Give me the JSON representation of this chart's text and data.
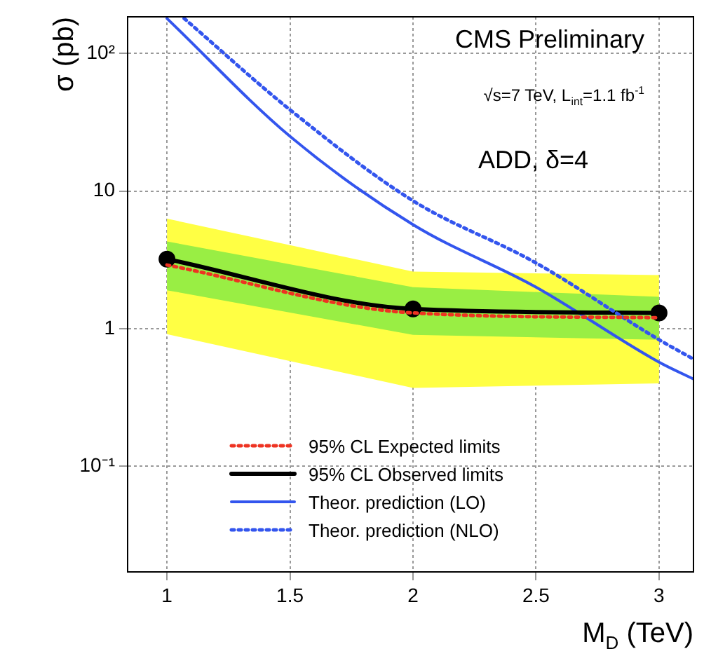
{
  "chart_data": {
    "type": "line",
    "xlabel": "M$_{D}$ (TeV)",
    "ylabel": "σ (pb)",
    "annotations": [
      "CMS Preliminary",
      "√s=7 TeV, L$_{int}$=1.1 fb$^{-1}$",
      "ADD, δ=4"
    ],
    "x": [
      1,
      2,
      3
    ],
    "series": [
      {
        "color": "#ffff44",
        "values": [
          null,
          null,
          null
        ],
        "lower": [
          0.91,
          0.37,
          0.4
        ],
        "upper": [
          6.3,
          2.6,
          2.45
        ]
      },
      {
        "color": "#99ee44",
        "values": [
          null,
          null,
          null
        ],
        "lower": [
          1.9,
          0.9,
          0.83
        ],
        "upper": [
          4.3,
          2.0,
          1.7
        ]
      },
      {
        "name": "95% CL Expected limits",
        "color": "#ee3322",
        "values": [
          2.9,
          1.3,
          1.2
        ],
        "line_style": "dotted",
        "marker": "none"
      },
      {
        "name": "95% CL Observed limits",
        "color": "#000000",
        "values": [
          3.2,
          1.39,
          1.3
        ],
        "line_style": "solid",
        "marker": "circle"
      },
      {
        "name": "Theor. prediction (LO)",
        "color": "#3355ee",
        "x": [
          1,
          1.5,
          2,
          2.5,
          3,
          3.14
        ],
        "values": [
          180,
          25,
          5.7,
          2.0,
          0.57,
          0.43
        ],
        "line_style": "solid",
        "marker": "none"
      },
      {
        "name": "Theor. prediction (NLO)",
        "color": "#3355ee",
        "x": [
          1.07,
          1.5,
          2,
          2.5,
          3,
          3.14
        ],
        "values": [
          180,
          39,
          8.5,
          3.0,
          0.83,
          0.6
        ],
        "line_style": "dotted",
        "marker": "none"
      }
    ],
    "log": "y",
    "xlim": [
      0.84,
      3.14
    ],
    "xticks": [
      1,
      1.5,
      2,
      2.5,
      3
    ],
    "ylim": [
      0.017,
      185
    ],
    "yticks": [
      {
        "value": 0.1,
        "label": "10⁻¹"
      },
      1,
      10,
      {
        "value": 100,
        "label": "10²"
      }
    ],
    "grid": true,
    "legend": "bottom left"
  }
}
